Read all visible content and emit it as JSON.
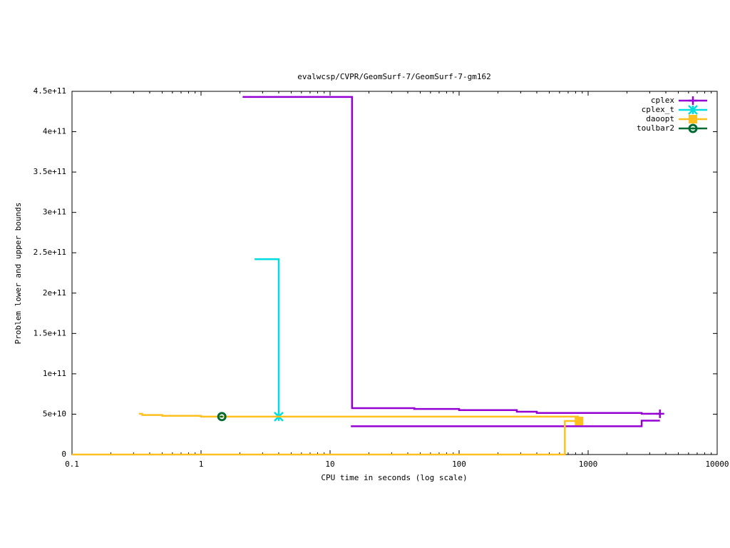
{
  "chart_data": {
    "type": "line",
    "title": "evalwcsp/CVPR/GeomSurf-7/GeomSurf-7-gm162",
    "x_label": "CPU time in seconds (log scale)",
    "y_label": "Problem lower and upper bounds",
    "x_log": true,
    "xlim": [
      0.1,
      10000
    ],
    "xticks": [
      0.1,
      1,
      10,
      100,
      1000,
      10000
    ],
    "ylim": [
      0,
      450000000000
    ],
    "yticks": [
      0,
      {
        "value": 50000000000,
        "label": "5e+10"
      },
      {
        "value": 100000000000,
        "label": "1e+11"
      },
      {
        "value": 150000000000,
        "label": "1.5e+11"
      },
      {
        "value": 200000000000,
        "label": "2e+11"
      },
      {
        "value": 250000000000,
        "label": "2.5e+11"
      },
      {
        "value": 300000000000,
        "label": "3e+11"
      },
      {
        "value": 350000000000,
        "label": "3.5e+11"
      },
      {
        "value": 400000000000,
        "label": "4e+11"
      },
      {
        "value": 450000000000,
        "label": "4.5e+11"
      }
    ],
    "legend": "top-right",
    "series": [
      {
        "name": "cplex",
        "color": "#9400d3",
        "marker": "plus",
        "x": [
          2.1,
          14.8,
          14.8,
          45,
          45,
          100,
          100,
          280,
          280,
          400,
          400,
          2600,
          2600,
          3600,
          null,
          14.5,
          2600,
          2600,
          3600
        ],
        "values": [
          443000000000,
          443000000000,
          57500000000,
          57500000000,
          56500000000,
          56500000000,
          55000000000,
          55000000000,
          53000000000,
          53000000000,
          51500000000,
          51500000000,
          50500000000,
          50500000000,
          null,
          35000000000,
          35000000000,
          42000000000,
          42000000000
        ]
      },
      {
        "name": "cplex_t",
        "color": "#00dde0",
        "marker": "x",
        "x": [
          2.6,
          4.0,
          4.0
        ],
        "values": [
          242000000000,
          242000000000,
          47000000000
        ]
      },
      {
        "name": "daoopt",
        "color": "#ffc020",
        "marker": "square",
        "x": [
          0.1,
          660,
          660,
          850,
          null,
          0.33,
          0.35,
          0.35,
          0.5,
          0.5,
          1.0,
          1.0,
          850
        ],
        "values": [
          0,
          0,
          41500000000,
          41500000000,
          null,
          50500000000,
          50500000000,
          49000000000,
          49000000000,
          48000000000,
          48000000000,
          47000000000,
          47000000000
        ]
      },
      {
        "name": "toulbar2",
        "color": "#006a30",
        "marker": "circle",
        "x": [
          1.4,
          1.45
        ],
        "values": [
          47000000000,
          47000000000
        ]
      }
    ]
  }
}
